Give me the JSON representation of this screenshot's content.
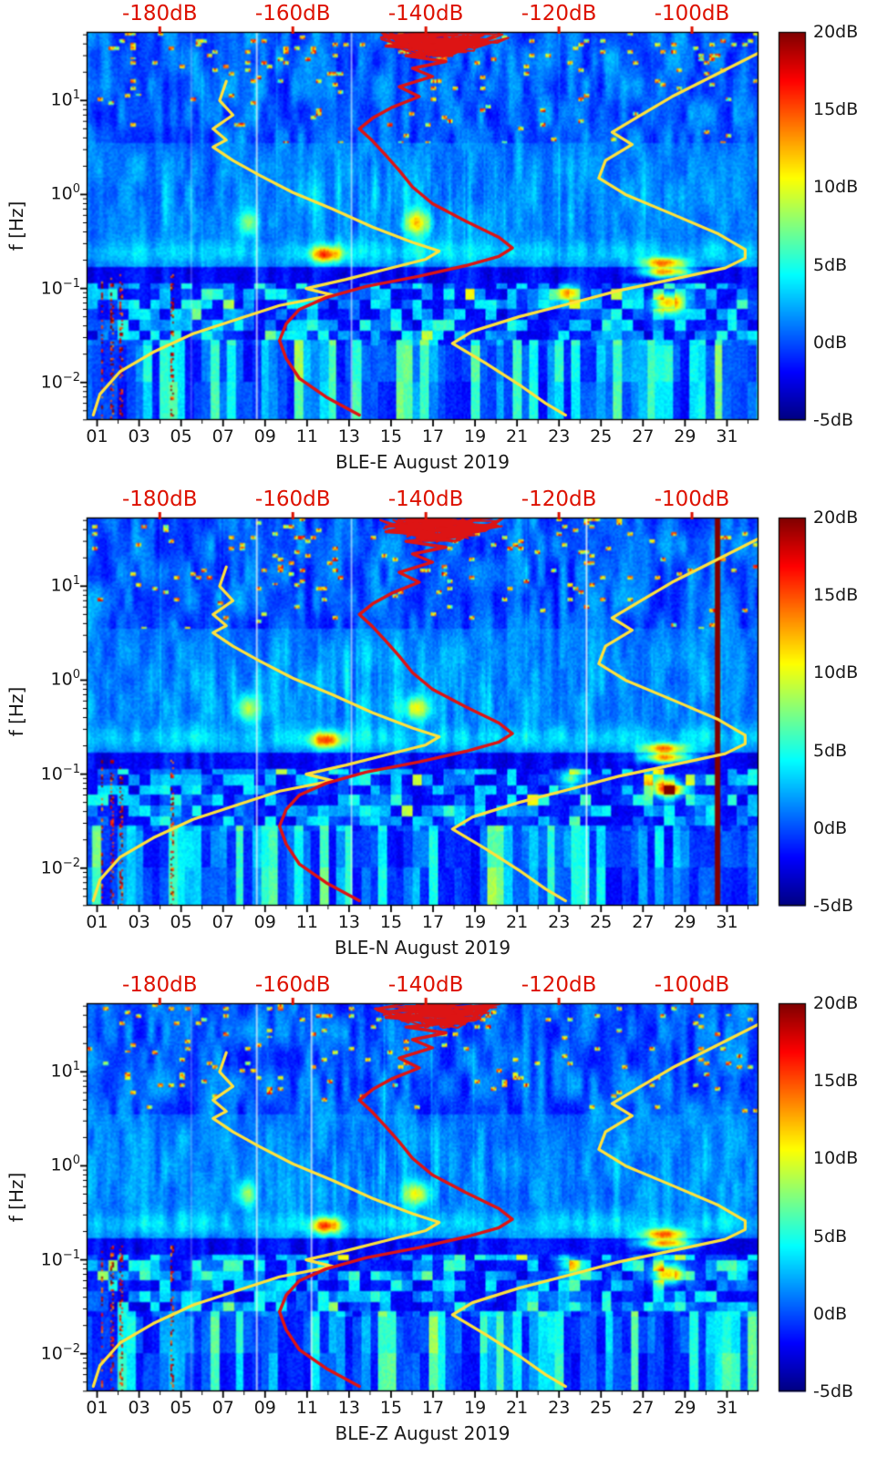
{
  "figure": {
    "background": "#ffffff"
  },
  "chart_data": {
    "type": "heatmap",
    "panels": [
      {
        "xlabel": "BLE-E August 2019",
        "seed": 11,
        "gap_days": [
          5.45,
          8.6,
          13.1
        ],
        "saturated_column": null
      },
      {
        "xlabel": "BLE-N August 2019",
        "seed": 23,
        "gap_days": [
          8.6,
          13.1,
          24.3
        ],
        "saturated_column": {
          "day": 30.55,
          "width": 0.3
        }
      },
      {
        "xlabel": "BLE-Z August 2019",
        "seed": 37,
        "gap_days": [
          5.45,
          8.6,
          11.2
        ],
        "saturated_column": null
      }
    ],
    "x_axis": {
      "range_days": [
        0.5,
        32.5
      ],
      "tick_labels": [
        "01",
        "03",
        "05",
        "07",
        "09",
        "11",
        "13",
        "15",
        "17",
        "19",
        "21",
        "23",
        "25",
        "27",
        "29",
        "31"
      ]
    },
    "y_axis": {
      "label": "f [Hz]",
      "log10_range": [
        -2.4,
        1.73
      ],
      "tick_exponents": [
        1,
        0,
        -1,
        -2
      ]
    },
    "top_axis": {
      "color": "#dd1100",
      "range_db": [
        -191,
        -90
      ],
      "values": [
        -180,
        -160,
        -140,
        -120,
        -100
      ],
      "labels": [
        "-180dB",
        "-160dB",
        "-140dB",
        "-120dB",
        "-100dB"
      ]
    },
    "colorbar": {
      "colormap": "jet",
      "range_db": [
        -5,
        20
      ],
      "tick_labels": [
        "20dB",
        "15dB",
        "10dB",
        "5dB",
        "0dB",
        "-5dB"
      ]
    },
    "overlay_curves": {
      "yellow_left": {
        "color": "#ffe23c",
        "width": 3.2,
        "points_db_hz": [
          [
            -170,
            16
          ],
          [
            -171,
            10
          ],
          [
            -169,
            7
          ],
          [
            -172,
            5
          ],
          [
            -170,
            3.8
          ],
          [
            -172,
            3.2
          ],
          [
            -169,
            2.3
          ],
          [
            -165,
            1.6
          ],
          [
            -160,
            1.05
          ],
          [
            -154,
            0.7
          ],
          [
            -148,
            0.45
          ],
          [
            -142,
            0.31
          ],
          [
            -138,
            0.25
          ],
          [
            -140,
            0.205
          ],
          [
            -146,
            0.16
          ],
          [
            -152,
            0.125
          ],
          [
            -158,
            0.1
          ],
          [
            -154,
            0.085
          ],
          [
            -162,
            0.066
          ],
          [
            -168,
            0.048
          ],
          [
            -175,
            0.033
          ],
          [
            -181,
            0.021
          ],
          [
            -186,
            0.013
          ],
          [
            -189,
            0.0075
          ],
          [
            -190,
            0.0045
          ]
        ]
      },
      "yellow_right": {
        "color": "#ffe23c",
        "width": 3.2,
        "points_db_hz": [
          [
            -90,
            32
          ],
          [
            -97,
            18
          ],
          [
            -103,
            11
          ],
          [
            -108,
            6.8
          ],
          [
            -112,
            4.6
          ],
          [
            -109,
            3.4
          ],
          [
            -113,
            2.3
          ],
          [
            -114,
            1.5
          ],
          [
            -110,
            1.0
          ],
          [
            -103,
            0.62
          ],
          [
            -96,
            0.38
          ],
          [
            -92,
            0.26
          ],
          [
            -92,
            0.21
          ],
          [
            -95,
            0.165
          ],
          [
            -103,
            0.125
          ],
          [
            -111,
            0.095
          ],
          [
            -118,
            0.07
          ],
          [
            -126,
            0.05
          ],
          [
            -133,
            0.035
          ],
          [
            -136,
            0.026
          ],
          [
            -131,
            0.016
          ],
          [
            -126,
            0.0095
          ],
          [
            -122,
            0.006
          ],
          [
            -119,
            0.0045
          ]
        ]
      },
      "red": {
        "color": "#dd1414",
        "width": 3.4,
        "scribble_top": true,
        "points_db_hz": [
          [
            -137,
            52
          ],
          [
            -144,
            46
          ],
          [
            -133,
            42
          ],
          [
            -146,
            38
          ],
          [
            -135,
            34
          ],
          [
            -143,
            30
          ],
          [
            -137,
            26
          ],
          [
            -142,
            22
          ],
          [
            -139,
            18
          ],
          [
            -144,
            14
          ],
          [
            -141,
            11
          ],
          [
            -145,
            8.5
          ],
          [
            -148,
            6.5
          ],
          [
            -150,
            5.0
          ],
          [
            -148,
            3.7
          ],
          [
            -146,
            2.6
          ],
          [
            -144,
            1.8
          ],
          [
            -142,
            1.2
          ],
          [
            -139,
            0.8
          ],
          [
            -134,
            0.52
          ],
          [
            -129,
            0.35
          ],
          [
            -127,
            0.27
          ],
          [
            -129,
            0.22
          ],
          [
            -134,
            0.175
          ],
          [
            -141,
            0.135
          ],
          [
            -149,
            0.105
          ],
          [
            -155,
            0.08
          ],
          [
            -159,
            0.06
          ],
          [
            -161,
            0.042
          ],
          [
            -162,
            0.028
          ],
          [
            -161,
            0.018
          ],
          [
            -159,
            0.011
          ],
          [
            -155,
            0.007
          ],
          [
            -150,
            0.0045
          ]
        ]
      }
    },
    "hotspots": [
      {
        "day": 11.9,
        "hz": 0.23,
        "amp": 13,
        "rd": 0.5,
        "rlf": 0.06
      },
      {
        "day": 16.2,
        "hz": 0.5,
        "amp": 9,
        "rd": 0.45,
        "rlf": 0.09
      },
      {
        "day": 8.2,
        "hz": 0.5,
        "amp": 7,
        "rd": 0.35,
        "rlf": 0.1
      },
      {
        "day": 28.0,
        "hz": 0.19,
        "amp": 12,
        "rd": 0.7,
        "rlf": 0.035
      },
      {
        "day": 28.1,
        "hz": 0.15,
        "amp": 15,
        "rd": 0.85,
        "rlf": 0.04
      },
      {
        "day": 28.2,
        "hz": 0.07,
        "amp": 14,
        "rd": 0.5,
        "rlf": 0.07
      },
      {
        "day": 23.5,
        "hz": 0.09,
        "amp": 8,
        "rd": 0.4,
        "rlf": 0.06
      }
    ],
    "red_speckle_days": [
      1.25,
      1.7,
      2.15,
      4.6
    ]
  }
}
